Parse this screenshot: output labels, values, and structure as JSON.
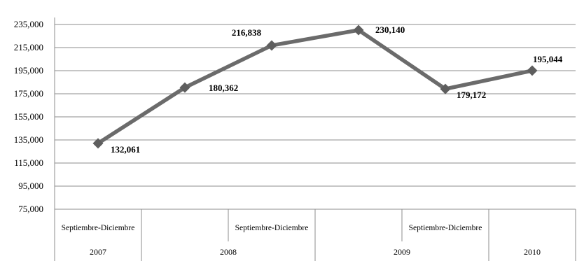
{
  "chart_data": {
    "type": "line",
    "title": "",
    "xlabel": "",
    "ylabel": "",
    "ylim": [
      75000,
      235000
    ],
    "yticks": [
      75000,
      95000,
      115000,
      135000,
      155000,
      175000,
      195000,
      215000,
      235000
    ],
    "ytick_labels": [
      "75,000",
      "95,000",
      "115,000",
      "135,000",
      "155,000",
      "175,000",
      "195,000",
      "215,000",
      "235,000"
    ],
    "grid": true,
    "legend": "none",
    "categories": [
      "Septiembre-Diciembre",
      "",
      "Septiembre-Diciembre",
      "",
      "Septiembre-Diciembre",
      ""
    ],
    "groups": [
      {
        "label": "2007",
        "span": 1
      },
      {
        "label": "2008",
        "span": 2
      },
      {
        "label": "2009",
        "span": 2
      },
      {
        "label": "2010",
        "span": 1
      }
    ],
    "series": [
      {
        "values": [
          132061,
          180362,
          216838,
          230140,
          179172,
          195044
        ],
        "labels": [
          "132,061",
          "180,362",
          "216,838",
          "230,140",
          "179,172",
          "195,044"
        ],
        "color": "#6b6b6b"
      }
    ]
  }
}
